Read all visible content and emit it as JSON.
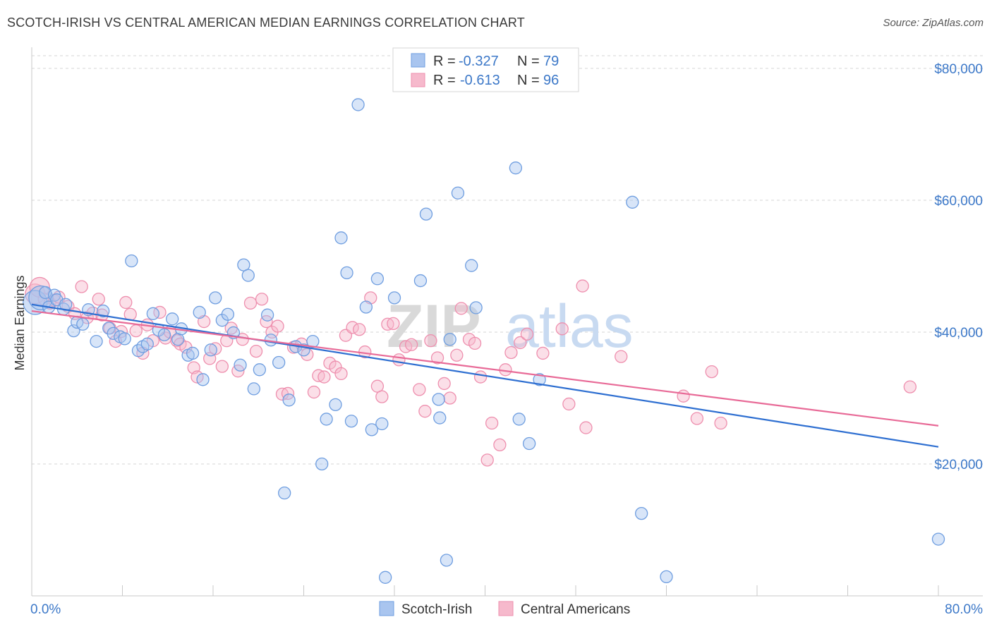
{
  "title": "SCOTCH-IRISH VS CENTRAL AMERICAN MEDIAN EARNINGS CORRELATION CHART",
  "source": "Source: ZipAtlas.com",
  "watermark": {
    "zip": "ZIP",
    "atlas": "atlas"
  },
  "colors": {
    "blue_fill": "#a9c5ef",
    "blue_stroke": "#6f9ee0",
    "blue_line": "#2e6fd1",
    "pink_fill": "#f6b9cc",
    "pink_stroke": "#ee8fae",
    "pink_line": "#e86a97",
    "grid": "#d6d6d6",
    "axis_text": "#3c78c8"
  },
  "legend": {
    "rows": [
      {
        "r_label": "R = ",
        "r_value": "-0.327",
        "n_label": "N = ",
        "n_value": "79"
      },
      {
        "r_label": "R = ",
        "r_value": "-0.613",
        "n_label": "N = ",
        "n_value": "96"
      }
    ]
  },
  "bottom_legend": [
    "Scotch-Irish",
    "Central Americans"
  ],
  "chart_data": {
    "type": "scatter",
    "title": "SCOTCH-IRISH VS CENTRAL AMERICAN MEDIAN EARNINGS CORRELATION CHART",
    "xlabel": "",
    "ylabel": "Median Earnings",
    "xlim": [
      0,
      80
    ],
    "ylim": [
      0,
      80000
    ],
    "x_ticks_labels": [
      "0.0%",
      "80.0%"
    ],
    "y_ticks": [
      20000,
      40000,
      60000,
      80000
    ],
    "y_tick_labels": [
      "$20,000",
      "$40,000",
      "$60,000",
      "$80,000"
    ],
    "grid": true,
    "legend_position": "top-center",
    "series": [
      {
        "name": "Scotch-Irish",
        "R": -0.327,
        "N": 79,
        "trend": {
          "x": [
            0,
            80
          ],
          "y": [
            44200,
            22600
          ]
        },
        "points": [
          [
            0.3,
            44500
          ],
          [
            0.8,
            45200
          ],
          [
            1.2,
            46000
          ],
          [
            1.5,
            43800
          ],
          [
            2.0,
            45600
          ],
          [
            2.2,
            44900
          ],
          [
            2.8,
            43500
          ],
          [
            3.0,
            44200
          ],
          [
            3.7,
            40200
          ],
          [
            4.0,
            41500
          ],
          [
            4.5,
            41200
          ],
          [
            5.0,
            43400
          ],
          [
            5.7,
            38600
          ],
          [
            6.3,
            43200
          ],
          [
            6.8,
            40600
          ],
          [
            7.2,
            39800
          ],
          [
            7.8,
            39300
          ],
          [
            8.2,
            39000
          ],
          [
            8.8,
            50800
          ],
          [
            9.4,
            37200
          ],
          [
            9.8,
            37800
          ],
          [
            10.2,
            38200
          ],
          [
            10.7,
            42800
          ],
          [
            11.2,
            40300
          ],
          [
            11.7,
            39600
          ],
          [
            12.4,
            42000
          ],
          [
            12.9,
            38900
          ],
          [
            13.2,
            40500
          ],
          [
            13.8,
            36500
          ],
          [
            14.2,
            36800
          ],
          [
            14.8,
            43000
          ],
          [
            15.1,
            32800
          ],
          [
            15.8,
            37300
          ],
          [
            16.2,
            45200
          ],
          [
            16.8,
            41800
          ],
          [
            17.3,
            42700
          ],
          [
            17.8,
            39900
          ],
          [
            18.4,
            35000
          ],
          [
            18.7,
            50200
          ],
          [
            19.1,
            48600
          ],
          [
            19.6,
            31400
          ],
          [
            20.1,
            34300
          ],
          [
            20.8,
            42600
          ],
          [
            21.1,
            38800
          ],
          [
            21.8,
            35400
          ],
          [
            22.3,
            15600
          ],
          [
            22.7,
            29700
          ],
          [
            23.3,
            37800
          ],
          [
            24.0,
            37300
          ],
          [
            24.8,
            38600
          ],
          [
            25.6,
            20000
          ],
          [
            26.0,
            26800
          ],
          [
            26.8,
            29000
          ],
          [
            27.3,
            54300
          ],
          [
            27.8,
            49000
          ],
          [
            28.2,
            26500
          ],
          [
            28.8,
            74500
          ],
          [
            29.5,
            43800
          ],
          [
            30.0,
            25200
          ],
          [
            30.5,
            48100
          ],
          [
            30.9,
            26100
          ],
          [
            31.2,
            2800
          ],
          [
            32.0,
            45200
          ],
          [
            34.3,
            47800
          ],
          [
            34.8,
            57900
          ],
          [
            35.9,
            29800
          ],
          [
            36.0,
            27000
          ],
          [
            36.6,
            5400
          ],
          [
            36.9,
            38900
          ],
          [
            37.6,
            61100
          ],
          [
            38.8,
            50100
          ],
          [
            39.2,
            43700
          ],
          [
            42.7,
            64900
          ],
          [
            43.0,
            26800
          ],
          [
            43.9,
            23100
          ],
          [
            44.8,
            32800
          ],
          [
            53.0,
            59700
          ],
          [
            53.8,
            12500
          ],
          [
            56.0,
            2900
          ],
          [
            80.0,
            8600
          ]
        ]
      },
      {
        "name": "Central Americans",
        "R": -0.613,
        "N": 96,
        "trend": {
          "x": [
            0,
            80
          ],
          "y": [
            43200,
            25800
          ]
        },
        "points": [
          [
            0.3,
            45800
          ],
          [
            0.7,
            46800
          ],
          [
            1.1,
            45000
          ],
          [
            1.6,
            44400
          ],
          [
            2.0,
            44800
          ],
          [
            2.4,
            45300
          ],
          [
            3.2,
            43900
          ],
          [
            3.8,
            42800
          ],
          [
            4.4,
            46900
          ],
          [
            4.9,
            42200
          ],
          [
            5.4,
            42900
          ],
          [
            5.9,
            45000
          ],
          [
            6.2,
            42600
          ],
          [
            6.9,
            40600
          ],
          [
            7.4,
            38600
          ],
          [
            7.9,
            40100
          ],
          [
            8.3,
            44500
          ],
          [
            8.7,
            42700
          ],
          [
            9.2,
            40200
          ],
          [
            9.8,
            36800
          ],
          [
            10.2,
            41100
          ],
          [
            10.7,
            38700
          ],
          [
            11.3,
            43000
          ],
          [
            11.8,
            39100
          ],
          [
            12.2,
            40000
          ],
          [
            12.8,
            38700
          ],
          [
            13.1,
            38200
          ],
          [
            13.6,
            37700
          ],
          [
            14.3,
            34600
          ],
          [
            14.6,
            33200
          ],
          [
            15.2,
            41600
          ],
          [
            15.7,
            36000
          ],
          [
            16.2,
            37500
          ],
          [
            16.8,
            34800
          ],
          [
            17.2,
            38700
          ],
          [
            17.6,
            40600
          ],
          [
            18.2,
            34100
          ],
          [
            18.6,
            38900
          ],
          [
            19.3,
            44400
          ],
          [
            19.8,
            37100
          ],
          [
            20.3,
            45000
          ],
          [
            20.7,
            41600
          ],
          [
            21.2,
            40000
          ],
          [
            21.7,
            40900
          ],
          [
            22.1,
            30600
          ],
          [
            22.6,
            30700
          ],
          [
            23.1,
            37700
          ],
          [
            23.8,
            38200
          ],
          [
            24.3,
            36600
          ],
          [
            24.9,
            30900
          ],
          [
            25.3,
            33400
          ],
          [
            25.8,
            33200
          ],
          [
            26.3,
            35300
          ],
          [
            26.8,
            34700
          ],
          [
            27.3,
            33700
          ],
          [
            27.7,
            39500
          ],
          [
            28.3,
            40700
          ],
          [
            28.9,
            40400
          ],
          [
            29.4,
            37000
          ],
          [
            29.9,
            45200
          ],
          [
            30.5,
            31800
          ],
          [
            30.9,
            30200
          ],
          [
            31.4,
            41200
          ],
          [
            31.9,
            41300
          ],
          [
            32.4,
            35800
          ],
          [
            33.0,
            37800
          ],
          [
            33.5,
            38100
          ],
          [
            34.2,
            31300
          ],
          [
            34.7,
            28000
          ],
          [
            35.2,
            38700
          ],
          [
            35.8,
            36100
          ],
          [
            36.4,
            32200
          ],
          [
            36.9,
            30000
          ],
          [
            37.5,
            36500
          ],
          [
            37.9,
            43600
          ],
          [
            38.6,
            38900
          ],
          [
            39.1,
            38300
          ],
          [
            39.6,
            33200
          ],
          [
            40.2,
            20600
          ],
          [
            40.6,
            26200
          ],
          [
            41.3,
            22900
          ],
          [
            41.8,
            34300
          ],
          [
            42.3,
            36900
          ],
          [
            43.1,
            38400
          ],
          [
            43.7,
            39700
          ],
          [
            45.1,
            36800
          ],
          [
            46.8,
            40500
          ],
          [
            47.4,
            29100
          ],
          [
            48.6,
            47000
          ],
          [
            48.9,
            25500
          ],
          [
            52.0,
            36300
          ],
          [
            57.5,
            30300
          ],
          [
            58.7,
            26900
          ],
          [
            60.0,
            34000
          ],
          [
            60.8,
            26200
          ],
          [
            77.5,
            31700
          ]
        ]
      }
    ]
  }
}
